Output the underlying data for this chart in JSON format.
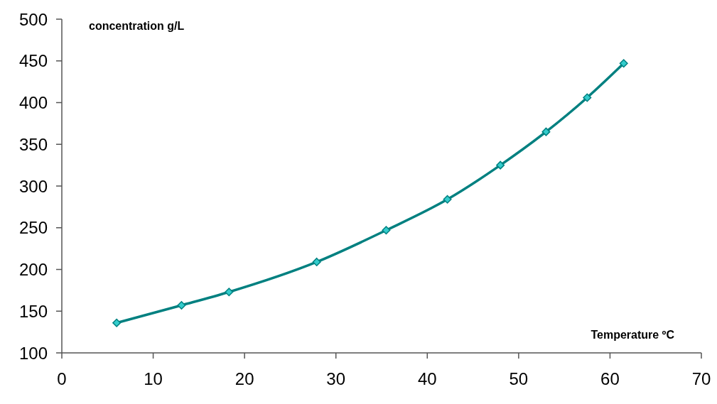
{
  "chart_data": {
    "type": "line",
    "xlabel": "Temperature ºC",
    "ylabel": "concentration g/L",
    "x": [
      6,
      13.1,
      18.3,
      27.9,
      35.5,
      42.2,
      48.0,
      53.0,
      57.5,
      61.5
    ],
    "series": [
      {
        "color": "#008080",
        "values": [
          136,
          157,
          173,
          209,
          247,
          284,
          325,
          365,
          406,
          447
        ]
      }
    ],
    "xlim": [
      0,
      70
    ],
    "xticks": [
      0,
      10,
      20,
      30,
      40,
      50,
      60,
      70
    ],
    "ylim": [
      100,
      500
    ],
    "yticks": [
      100,
      150,
      200,
      250,
      300,
      350,
      400,
      450,
      500
    ],
    "grid": false,
    "marker": "diamond",
    "line_style": "solid"
  }
}
